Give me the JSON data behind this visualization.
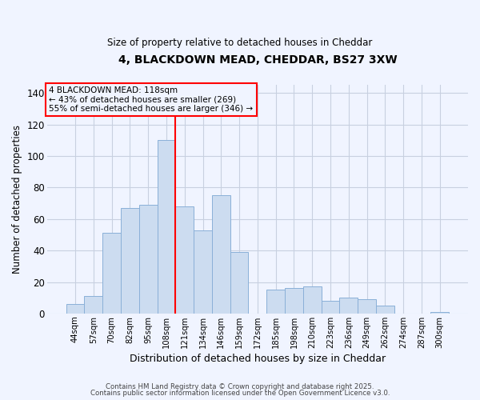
{
  "title": "4, BLACKDOWN MEAD, CHEDDAR, BS27 3XW",
  "subtitle": "Size of property relative to detached houses in Cheddar",
  "xlabel": "Distribution of detached houses by size in Cheddar",
  "ylabel": "Number of detached properties",
  "bar_labels": [
    "44sqm",
    "57sqm",
    "70sqm",
    "82sqm",
    "95sqm",
    "108sqm",
    "121sqm",
    "134sqm",
    "146sqm",
    "159sqm",
    "172sqm",
    "185sqm",
    "198sqm",
    "210sqm",
    "223sqm",
    "236sqm",
    "249sqm",
    "262sqm",
    "274sqm",
    "287sqm",
    "300sqm"
  ],
  "bar_values": [
    6,
    11,
    51,
    67,
    69,
    110,
    68,
    53,
    75,
    39,
    0,
    15,
    16,
    17,
    8,
    10,
    9,
    5,
    0,
    0,
    1
  ],
  "bar_color": "#ccdcf0",
  "bar_edgecolor": "#8ab0d8",
  "vline_label": "121sqm",
  "annotation_title": "4 BLACKDOWN MEAD: 118sqm",
  "annotation_line1": "← 43% of detached houses are smaller (269)",
  "annotation_line2": "55% of semi-detached houses are larger (346) →",
  "ylim": [
    0,
    145
  ],
  "yticks": [
    0,
    20,
    40,
    60,
    80,
    100,
    120,
    140
  ],
  "footnote1": "Contains HM Land Registry data © Crown copyright and database right 2025.",
  "footnote2": "Contains public sector information licensed under the Open Government Licence v3.0.",
  "background_color": "#f0f4ff"
}
